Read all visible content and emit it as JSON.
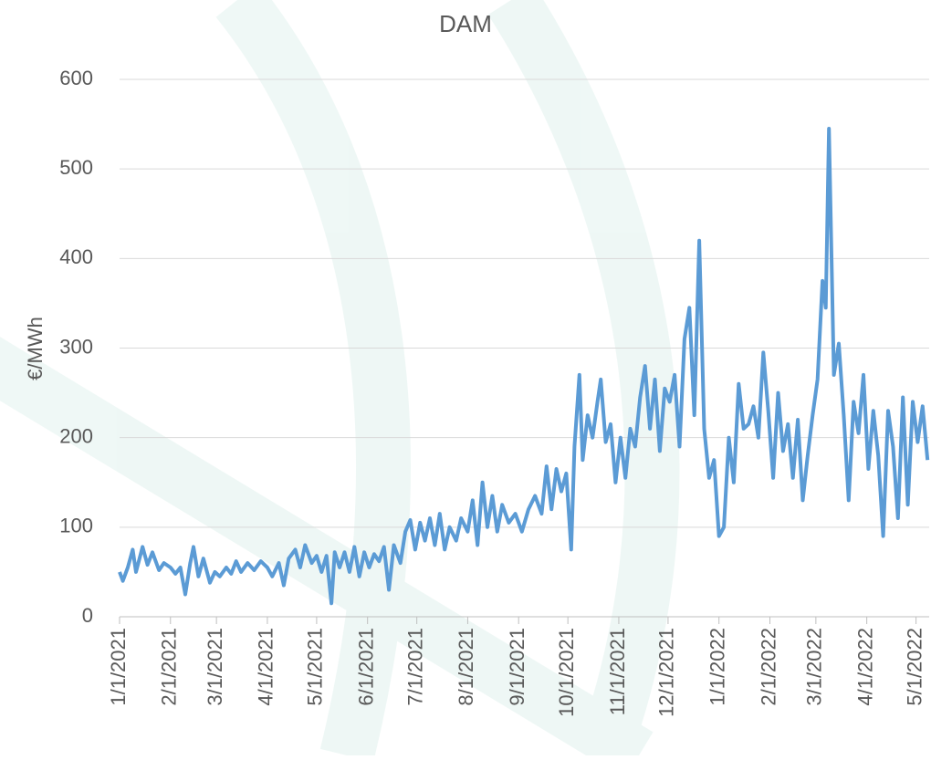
{
  "chart_data": {
    "type": "line",
    "title": "DAM",
    "y_label": "€/MWh",
    "x": [
      "1/1/2021",
      "1/3/2021",
      "1/6/2021",
      "1/9/2021",
      "1/11/2021",
      "1/15/2021",
      "1/18/2021",
      "1/21/2021",
      "1/25/2021",
      "1/28/2021",
      "2/1/2021",
      "2/4/2021",
      "2/7/2021",
      "2/10/2021",
      "2/13/2021",
      "2/15/2021",
      "2/18/2021",
      "2/21/2021",
      "2/25/2021",
      "2/28/2021",
      "3/3/2021",
      "3/7/2021",
      "3/10/2021",
      "3/13/2021",
      "3/16/2021",
      "3/20/2021",
      "3/24/2021",
      "3/28/2021",
      "4/1/2021",
      "4/4/2021",
      "4/8/2021",
      "4/11/2021",
      "4/14/2021",
      "4/18/2021",
      "4/21/2021",
      "4/24/2021",
      "4/28/2021",
      "5/1/2021",
      "5/4/2021",
      "5/7/2021",
      "5/10/2021",
      "5/12/2021",
      "5/15/2021",
      "5/18/2021",
      "5/21/2021",
      "5/24/2021",
      "5/27/2021",
      "5/30/2021",
      "6/2/2021",
      "6/5/2021",
      "6/8/2021",
      "6/11/2021",
      "6/14/2021",
      "6/17/2021",
      "6/21/2021",
      "6/24/2021",
      "6/27/2021",
      "6/30/2021",
      "7/3/2021",
      "7/6/2021",
      "7/9/2021",
      "7/12/2021",
      "7/15/2021",
      "7/18/2021",
      "7/21/2021",
      "7/25/2021",
      "7/28/2021",
      "8/1/2021",
      "8/4/2021",
      "8/7/2021",
      "8/10/2021",
      "8/13/2021",
      "8/16/2021",
      "8/19/2021",
      "8/22/2021",
      "8/26/2021",
      "8/30/2021",
      "9/3/2021",
      "9/7/2021",
      "9/11/2021",
      "9/15/2021",
      "9/18/2021",
      "9/21/2021",
      "9/24/2021",
      "9/27/2021",
      "9/30/2021",
      "10/3/2021",
      "10/5/2021",
      "10/8/2021",
      "10/10/2021",
      "10/13/2021",
      "10/16/2021",
      "10/19/2021",
      "10/21/2021",
      "10/24/2021",
      "10/27/2021",
      "10/30/2021",
      "11/2/2021",
      "11/5/2021",
      "11/8/2021",
      "11/11/2021",
      "11/14/2021",
      "11/17/2021",
      "11/20/2021",
      "11/23/2021",
      "11/26/2021",
      "11/29/2021",
      "12/2/2021",
      "12/5/2021",
      "12/8/2021",
      "12/11/2021",
      "12/14/2021",
      "12/17/2021",
      "12/20/2021",
      "12/23/2021",
      "12/26/2021",
      "12/29/2021",
      "1/1/2022",
      "1/4/2022",
      "1/7/2022",
      "1/10/2022",
      "1/13/2022",
      "1/16/2022",
      "1/19/2022",
      "1/22/2022",
      "1/25/2022",
      "1/28/2022",
      "1/31/2022",
      "2/3/2022",
      "2/6/2022",
      "2/9/2022",
      "2/12/2022",
      "2/15/2022",
      "2/18/2022",
      "2/21/2022",
      "2/24/2022",
      "2/27/2022",
      "3/2/2022",
      "3/5/2022",
      "3/7/2022",
      "3/9/2022",
      "3/12/2022",
      "3/15/2022",
      "3/18/2022",
      "3/21/2022",
      "3/24/2022",
      "3/27/2022",
      "3/30/2022",
      "4/2/2022",
      "4/5/2022",
      "4/8/2022",
      "4/11/2022",
      "4/14/2022",
      "4/17/2022",
      "4/20/2022",
      "4/23/2022",
      "4/26/2022",
      "4/29/2022",
      "5/2/2022",
      "5/5/2022",
      "5/8/2022"
    ],
    "series": [
      {
        "name": "DAM",
        "color": "#5b9bd5",
        "values": [
          50,
          40,
          55,
          75,
          50,
          78,
          58,
          72,
          52,
          60,
          55,
          48,
          55,
          25,
          60,
          78,
          45,
          65,
          38,
          50,
          45,
          55,
          48,
          62,
          50,
          60,
          52,
          62,
          55,
          45,
          60,
          35,
          65,
          75,
          55,
          80,
          60,
          68,
          50,
          68,
          15,
          72,
          55,
          72,
          50,
          78,
          45,
          72,
          55,
          70,
          62,
          78,
          30,
          80,
          60,
          95,
          108,
          75,
          105,
          85,
          110,
          80,
          115,
          75,
          100,
          85,
          110,
          95,
          130,
          80,
          150,
          100,
          135,
          95,
          125,
          105,
          115,
          95,
          120,
          135,
          115,
          168,
          120,
          165,
          140,
          160,
          75,
          190,
          270,
          175,
          225,
          200,
          240,
          265,
          195,
          215,
          150,
          200,
          155,
          210,
          190,
          245,
          280,
          210,
          265,
          185,
          255,
          240,
          270,
          190,
          310,
          345,
          225,
          420,
          210,
          155,
          175,
          90,
          100,
          200,
          150,
          260,
          210,
          215,
          235,
          200,
          295,
          230,
          155,
          250,
          185,
          215,
          155,
          220,
          130,
          180,
          225,
          265,
          375,
          345,
          545,
          270,
          305,
          225,
          130,
          240,
          205,
          270,
          165,
          230,
          180,
          90,
          230,
          190,
          110,
          245,
          125,
          240,
          195,
          235,
          175
        ]
      }
    ],
    "xlim": [
      "1/1/2021",
      "5/9/2022"
    ],
    "xticks": [
      "1/1/2021",
      "2/1/2021",
      "3/1/2021",
      "4/1/2021",
      "5/1/2021",
      "6/1/2021",
      "7/1/2021",
      "8/1/2021",
      "9/1/2021",
      "10/1/2021",
      "11/1/2021",
      "12/1/2021",
      "1/1/2022",
      "2/1/2022",
      "3/1/2022",
      "4/1/2022",
      "5/1/2022"
    ],
    "ylim": [
      0,
      600
    ],
    "yticks": [
      0,
      100,
      200,
      300,
      400,
      500,
      600
    ],
    "grid": true
  }
}
